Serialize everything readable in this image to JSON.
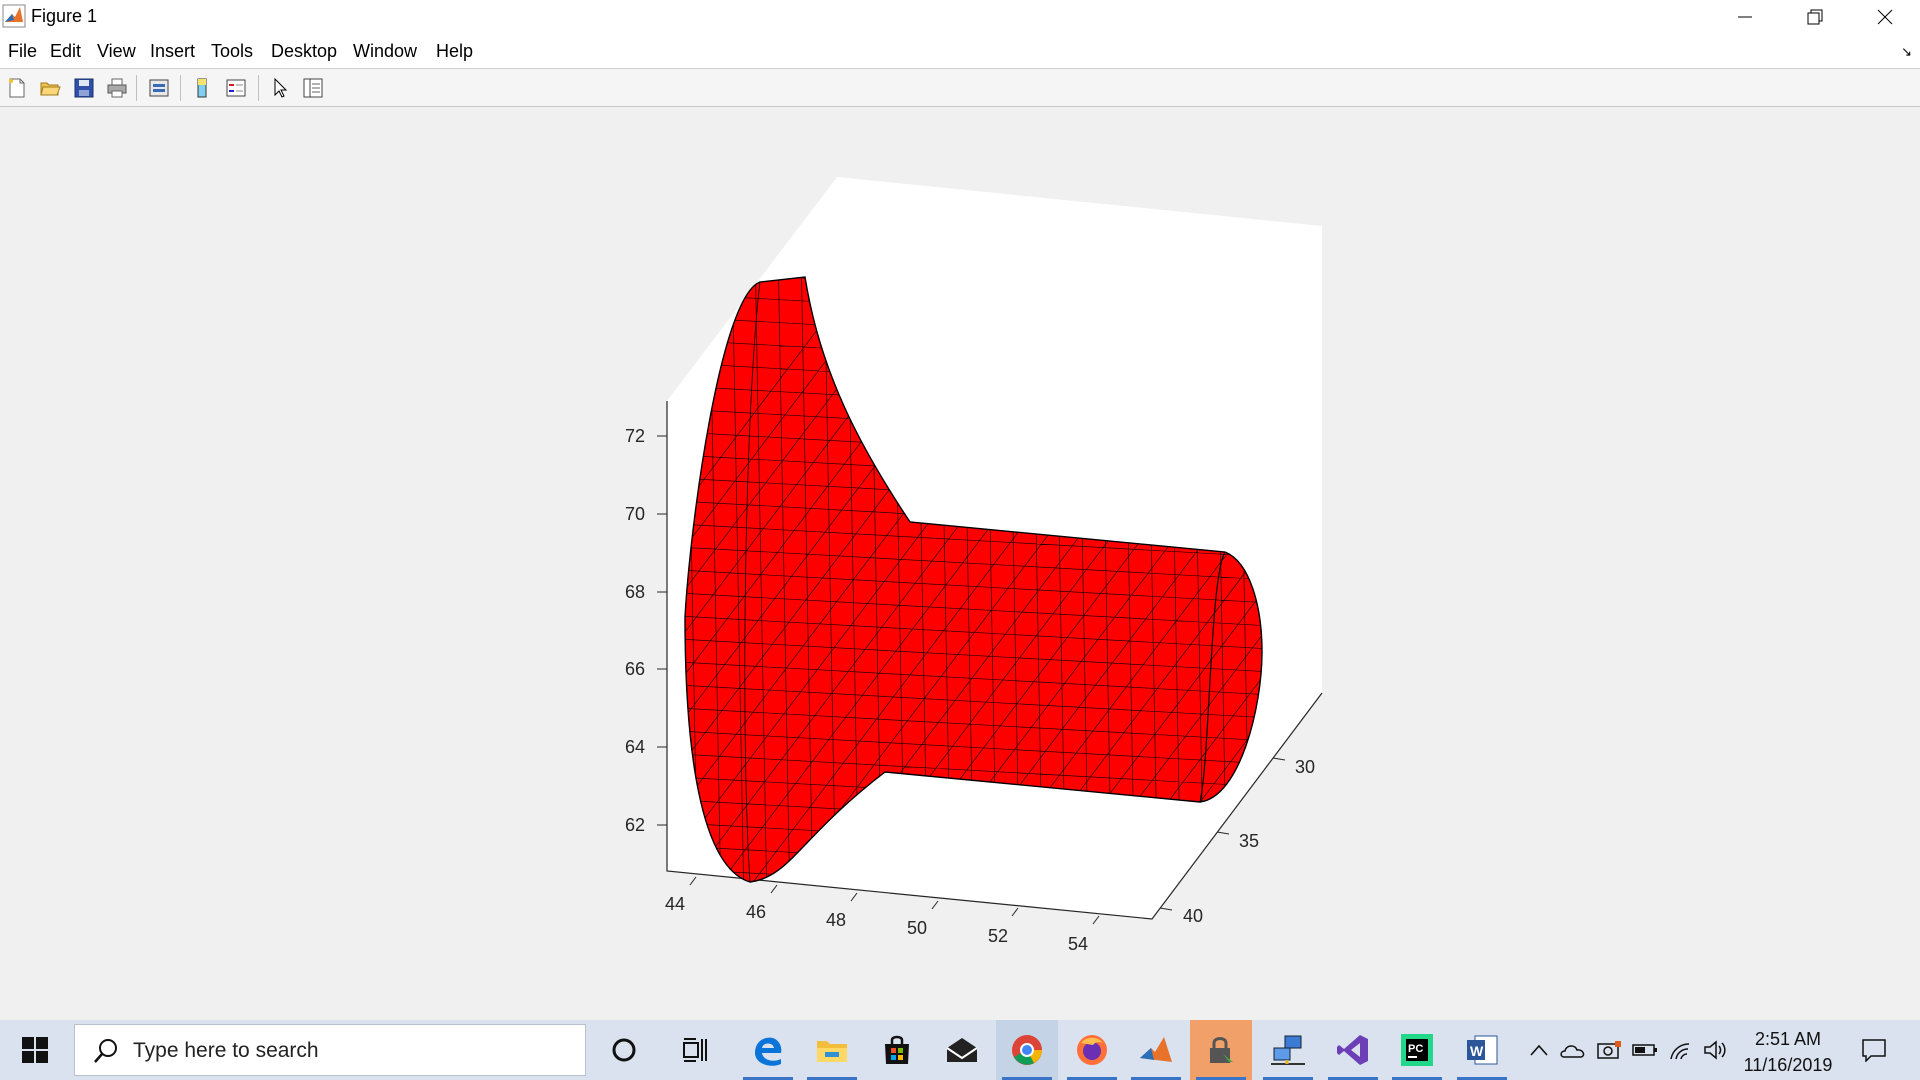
{
  "window": {
    "title": "Figure 1",
    "icons": {
      "app": "matlab-icon",
      "minimize": "minimize-icon",
      "restore": "restore-icon",
      "close": "close-icon"
    }
  },
  "menu": {
    "items": [
      {
        "label": "File"
      },
      {
        "label": "Edit"
      },
      {
        "label": "View"
      },
      {
        "label": "Insert"
      },
      {
        "label": "Tools"
      },
      {
        "label": "Desktop"
      },
      {
        "label": "Window"
      },
      {
        "label": "Help"
      }
    ],
    "dock_icon": "dock-arrow-icon"
  },
  "toolbar": {
    "buttons": [
      "new-figure-icon",
      "open-file-icon",
      "save-icon",
      "print-icon",
      "link-plot-icon",
      "insert-colorbar-icon",
      "insert-legend-icon",
      "edit-plot-icon",
      "property-inspector-icon"
    ]
  },
  "plot": {
    "surface_color": "#ff0000",
    "edge_color": "#000000",
    "axes": {
      "z_ticks": [
        "72",
        "70",
        "68",
        "66",
        "64",
        "62"
      ],
      "x_ticks": [
        "44",
        "46",
        "48",
        "50",
        "52",
        "54"
      ],
      "y_ticks": [
        "30",
        "35",
        "40"
      ]
    }
  },
  "taskbar": {
    "search_placeholder": "Type here to search",
    "apps": [
      "cortana-icon",
      "task-view-icon",
      "edge-icon",
      "file-explorer-icon",
      "store-icon",
      "mail-icon",
      "chrome-icon",
      "firefox-icon",
      "matlab-icon",
      "vpn-lock-icon",
      "network-app-icon",
      "visual-studio-icon",
      "pycharm-icon",
      "word-icon"
    ],
    "tray": [
      "chevron-up-icon",
      "onedrive-icon",
      "camera-icon",
      "battery-icon",
      "wifi-icon",
      "volume-icon"
    ],
    "time": "2:51 AM",
    "date": "11/16/2019",
    "notification_icon": "notification-icon"
  }
}
